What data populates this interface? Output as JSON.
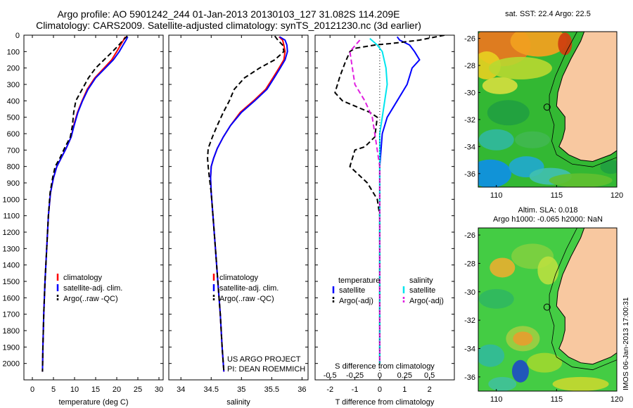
{
  "header": {
    "line1": "Argo profile: AO 5901242_244 01-Jan-2013 20130103_127 31.082S 114.209E",
    "line2": "Climatology: CARS2009. Satellite-adjusted climatology: synTS_20121230.nc (3d earlier)"
  },
  "project": {
    "line1": "US ARGO PROJECT",
    "line2": "PI: DEAN ROEMMICH"
  },
  "stamp": "IMOS 06-Jan-2013 17:00:31",
  "colors": {
    "climatology": "#ff0000",
    "satellite": "#0000ff",
    "argo": "#000000",
    "cyan": "#00e5ee",
    "magenta": "#e020e0",
    "land": "#f8c8a0"
  },
  "chart_data": [
    {
      "type": "line",
      "xlabel": "temperature (deg C)",
      "ylabel": "",
      "xlim": [
        -2,
        31
      ],
      "ylim": [
        2100,
        0
      ],
      "xticks": [
        0,
        5,
        10,
        15,
        20,
        25,
        30
      ],
      "yticks": [
        0,
        100,
        200,
        300,
        400,
        500,
        600,
        700,
        800,
        900,
        1000,
        1100,
        1200,
        1300,
        1400,
        1500,
        1600,
        1700,
        1800,
        1900,
        2000
      ],
      "legend": [
        "climatology",
        "satellite-adj. clim.",
        "Argo(..raw -QC)"
      ],
      "series": [
        {
          "name": "climatology",
          "style": "solid",
          "color": "#ff0000",
          "points": [
            [
              22.0,
              10
            ],
            [
              21.6,
              30
            ],
            [
              20.9,
              60
            ],
            [
              20.0,
              100
            ],
            [
              18.8,
              150
            ],
            [
              17.0,
              200
            ],
            [
              14.8,
              260
            ],
            [
              13.0,
              330
            ],
            [
              11.8,
              400
            ],
            [
              10.7,
              470
            ],
            [
              9.8,
              550
            ],
            [
              9.2,
              620
            ],
            [
              8.0,
              690
            ],
            [
              6.8,
              750
            ],
            [
              5.8,
              800
            ],
            [
              5.0,
              870
            ],
            [
              4.3,
              960
            ],
            [
              3.8,
              1100
            ],
            [
              3.4,
              1300
            ],
            [
              3.0,
              1500
            ],
            [
              2.7,
              1700
            ],
            [
              2.5,
              1900
            ],
            [
              2.4,
              2050
            ]
          ]
        },
        {
          "name": "satellite-adj. clim.",
          "style": "solid",
          "color": "#0000ff",
          "points": [
            [
              22.6,
              10
            ],
            [
              22.2,
              30
            ],
            [
              21.5,
              60
            ],
            [
              20.6,
              100
            ],
            [
              19.2,
              150
            ],
            [
              17.3,
              200
            ],
            [
              15.0,
              260
            ],
            [
              13.2,
              330
            ],
            [
              11.9,
              400
            ],
            [
              10.8,
              470
            ],
            [
              9.9,
              550
            ],
            [
              9.2,
              620
            ],
            [
              8.0,
              690
            ],
            [
              6.8,
              750
            ],
            [
              5.8,
              800
            ],
            [
              5.0,
              870
            ],
            [
              4.3,
              960
            ],
            [
              3.8,
              1100
            ],
            [
              3.4,
              1300
            ],
            [
              3.0,
              1500
            ],
            [
              2.7,
              1700
            ],
            [
              2.5,
              1900
            ],
            [
              2.4,
              2050
            ]
          ]
        },
        {
          "name": "Argo(..raw -QC)",
          "style": "dashed",
          "color": "#000000",
          "points": [
            [
              22.5,
              5
            ],
            [
              21.5,
              30
            ],
            [
              20.5,
              60
            ],
            [
              19.0,
              100
            ],
            [
              17.0,
              150
            ],
            [
              15.0,
              200
            ],
            [
              13.3,
              260
            ],
            [
              11.8,
              330
            ],
            [
              10.3,
              400
            ],
            [
              9.8,
              470
            ],
            [
              9.5,
              550
            ],
            [
              9.0,
              620
            ],
            [
              7.6,
              690
            ],
            [
              6.5,
              750
            ],
            [
              5.4,
              800
            ],
            [
              4.8,
              870
            ],
            [
              4.2,
              960
            ],
            [
              3.8,
              1100
            ],
            [
              3.4,
              1300
            ],
            [
              3.0,
              1500
            ],
            [
              2.7,
              1700
            ],
            [
              2.5,
              1900
            ],
            [
              2.4,
              2050
            ]
          ]
        }
      ]
    },
    {
      "type": "line",
      "xlabel": "salinity",
      "ylabel": "",
      "xlim": [
        33.8,
        36.1
      ],
      "ylim": [
        2100,
        0
      ],
      "xticks": [
        34,
        34.5,
        35,
        35.5,
        36
      ],
      "legend": [
        "climatology",
        "satellite-adj. clim.",
        "Argo(..raw -QC)"
      ],
      "series": [
        {
          "name": "climatology",
          "style": "solid",
          "color": "#ff0000",
          "points": [
            [
              35.62,
              10
            ],
            [
              35.68,
              30
            ],
            [
              35.7,
              60
            ],
            [
              35.72,
              100
            ],
            [
              35.7,
              150
            ],
            [
              35.62,
              200
            ],
            [
              35.52,
              260
            ],
            [
              35.4,
              330
            ],
            [
              35.2,
              400
            ],
            [
              34.98,
              470
            ],
            [
              34.82,
              550
            ],
            [
              34.7,
              620
            ],
            [
              34.6,
              690
            ],
            [
              34.54,
              750
            ],
            [
              34.5,
              800
            ],
            [
              34.49,
              870
            ],
            [
              34.5,
              960
            ],
            [
              34.53,
              1100
            ],
            [
              34.57,
              1300
            ],
            [
              34.61,
              1500
            ],
            [
              34.65,
              1700
            ],
            [
              34.68,
              1900
            ],
            [
              34.71,
              2050
            ]
          ]
        },
        {
          "name": "satellite-adj. clim.",
          "style": "solid",
          "color": "#0000ff",
          "points": [
            [
              35.63,
              10
            ],
            [
              35.72,
              30
            ],
            [
              35.75,
              60
            ],
            [
              35.76,
              100
            ],
            [
              35.72,
              150
            ],
            [
              35.64,
              200
            ],
            [
              35.54,
              260
            ],
            [
              35.42,
              330
            ],
            [
              35.22,
              400
            ],
            [
              35.0,
              470
            ],
            [
              34.82,
              550
            ],
            [
              34.7,
              620
            ],
            [
              34.6,
              690
            ],
            [
              34.54,
              750
            ],
            [
              34.5,
              800
            ],
            [
              34.49,
              870
            ],
            [
              34.5,
              960
            ],
            [
              34.53,
              1100
            ],
            [
              34.57,
              1300
            ],
            [
              34.61,
              1500
            ],
            [
              34.65,
              1700
            ],
            [
              34.68,
              1900
            ],
            [
              34.71,
              2050
            ]
          ]
        },
        {
          "name": "Argo(..raw -QC)",
          "style": "dashed",
          "color": "#000000",
          "points": [
            [
              35.55,
              5
            ],
            [
              35.6,
              30
            ],
            [
              35.68,
              60
            ],
            [
              35.7,
              100
            ],
            [
              35.55,
              150
            ],
            [
              35.3,
              200
            ],
            [
              35.05,
              260
            ],
            [
              34.88,
              330
            ],
            [
              34.8,
              400
            ],
            [
              34.7,
              470
            ],
            [
              34.6,
              550
            ],
            [
              34.52,
              620
            ],
            [
              34.45,
              690
            ],
            [
              34.44,
              750
            ],
            [
              34.45,
              800
            ],
            [
              34.47,
              870
            ],
            [
              34.5,
              960
            ],
            [
              34.53,
              1100
            ],
            [
              34.57,
              1300
            ],
            [
              34.61,
              1500
            ],
            [
              34.65,
              1700
            ],
            [
              34.68,
              1900
            ],
            [
              34.71,
              2050
            ]
          ]
        }
      ]
    },
    {
      "type": "line",
      "xlabel": "T difference from climatology",
      "x2label": "S difference from climatology",
      "xlim": [
        -2.6,
        3.0
      ],
      "ylim": [
        2100,
        0
      ],
      "xticks": [
        -2,
        -1,
        0,
        1,
        2
      ],
      "x2ticks": [
        "-0.5",
        "-0.25",
        "0",
        "0.25",
        "0.5"
      ],
      "legend_temperature": {
        "title": "temperature",
        "entries": [
          "satellite",
          "Argo(-adj)"
        ]
      },
      "legend_salinity": {
        "title": "salinity",
        "entries": [
          "satellite",
          "Argo(-adj)"
        ]
      },
      "series": [
        {
          "name": "satellite",
          "group": "temperature",
          "style": "solid",
          "color": "#0000ff",
          "points": [
            [
              0.7,
              10
            ],
            [
              0.8,
              30
            ],
            [
              1.2,
              60
            ],
            [
              1.4,
              100
            ],
            [
              1.6,
              150
            ],
            [
              1.3,
              200
            ],
            [
              1.2,
              250
            ],
            [
              1.1,
              300
            ],
            [
              0.7,
              400
            ],
            [
              0.3,
              500
            ],
            [
              0.1,
              600
            ],
            [
              0.05,
              700
            ],
            [
              0.0,
              800
            ],
            [
              0.0,
              1000
            ],
            [
              0.0,
              2000
            ]
          ]
        },
        {
          "name": "Argo(-adj)",
          "group": "temperature",
          "style": "dashed",
          "color": "#000000",
          "points": [
            [
              2.6,
              0
            ],
            [
              1.6,
              30
            ],
            [
              0.5,
              50
            ],
            [
              -0.2,
              60
            ],
            [
              -1.0,
              80
            ],
            [
              -1.2,
              100
            ],
            [
              -1.4,
              170
            ],
            [
              -1.6,
              250
            ],
            [
              -1.8,
              350
            ],
            [
              -1.5,
              400
            ],
            [
              -0.4,
              470
            ],
            [
              -0.1,
              500
            ],
            [
              -0.2,
              620
            ],
            [
              -0.6,
              680
            ],
            [
              -1.0,
              700
            ],
            [
              -1.2,
              800
            ],
            [
              -0.5,
              900
            ],
            [
              -0.1,
              1000
            ],
            [
              0.0,
              1100
            ],
            [
              0.0,
              2000
            ]
          ]
        },
        {
          "name": "satellite",
          "group": "salinity",
          "style": "solid",
          "color": "#00e5ee",
          "points": [
            [
              -0.4,
              20
            ],
            [
              -0.1,
              60
            ],
            [
              0.1,
              100
            ],
            [
              0.25,
              200
            ],
            [
              0.3,
              300
            ],
            [
              0.2,
              400
            ],
            [
              0.1,
              500
            ],
            [
              0.0,
              600
            ],
            [
              0.0,
              2000
            ]
          ]
        },
        {
          "name": "Argo(-adj)",
          "group": "salinity",
          "style": "dashed",
          "color": "#e020e0",
          "points": [
            [
              -0.8,
              30
            ],
            [
              -1.2,
              100
            ],
            [
              -1.1,
              200
            ],
            [
              -1.0,
              300
            ],
            [
              -0.6,
              400
            ],
            [
              -0.3,
              500
            ],
            [
              -0.2,
              600
            ],
            [
              -0.1,
              700
            ],
            [
              0.0,
              800
            ],
            [
              0.0,
              2000
            ]
          ]
        },
        {
          "name": "zero line",
          "group": "reference",
          "style": "dotted",
          "color": "#000000",
          "points": [
            [
              0,
              0
            ],
            [
              0,
              2050
            ]
          ]
        }
      ]
    },
    {
      "type": "heatmap",
      "title": "sat. SST: 22.4  Argo: 22.5",
      "xlim": [
        108.5,
        120
      ],
      "ylim": [
        -37,
        -25.5
      ],
      "xticks": [
        110,
        115,
        120
      ],
      "yticks": [
        -26,
        -28,
        -30,
        -32,
        -34,
        -36
      ],
      "marker": {
        "lon": 114.209,
        "lat": -31.082
      }
    },
    {
      "type": "heatmap",
      "title_line1": "Altim. SLA: 0.018",
      "title_line2": "Argo h1000: -0.065 h2000: NaN",
      "xlim": [
        108.5,
        120
      ],
      "ylim": [
        -37,
        -25.5
      ],
      "xticks": [
        110,
        115,
        120
      ],
      "yticks": [
        -26,
        -28,
        -30,
        -32,
        -34,
        -36
      ],
      "marker": {
        "lon": 114.209,
        "lat": -31.082
      }
    }
  ]
}
